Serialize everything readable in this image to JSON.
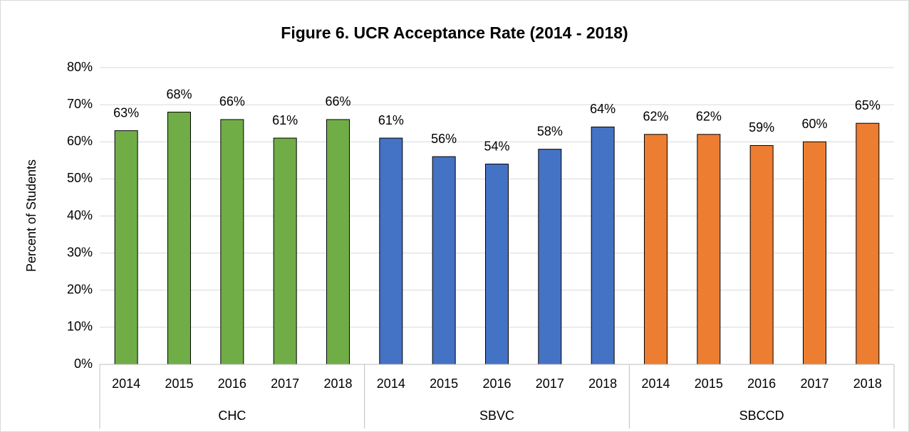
{
  "chart_data": {
    "type": "bar",
    "title": "Figure 6. UCR Acceptance Rate (2014 - 2018)",
    "ylabel": "Percent of Students",
    "groups": [
      {
        "name": "CHC",
        "color": "#70ad47",
        "categories": [
          "2014",
          "2015",
          "2016",
          "2017",
          "2018"
        ],
        "values": [
          63,
          68,
          66,
          61,
          66
        ],
        "value_labels": [
          "63%",
          "68%",
          "66%",
          "61%",
          "66%"
        ]
      },
      {
        "name": "SBVC",
        "color": "#4472c4",
        "categories": [
          "2014",
          "2015",
          "2016",
          "2017",
          "2018"
        ],
        "values": [
          61,
          56,
          54,
          58,
          64
        ],
        "value_labels": [
          "61%",
          "56%",
          "54%",
          "58%",
          "64%"
        ]
      },
      {
        "name": "SBCCD",
        "color": "#ed7d31",
        "categories": [
          "2014",
          "2015",
          "2016",
          "2017",
          "2018"
        ],
        "values": [
          62,
          62,
          59,
          60,
          65
        ],
        "value_labels": [
          "62%",
          "62%",
          "59%",
          "60%",
          "65%"
        ]
      }
    ],
    "ylim": [
      0,
      80
    ],
    "yticks": [
      {
        "value": 0,
        "label": "0%"
      },
      {
        "value": 10,
        "label": "10%"
      },
      {
        "value": 20,
        "label": "20%"
      },
      {
        "value": 30,
        "label": "30%"
      },
      {
        "value": 40,
        "label": "40%"
      },
      {
        "value": 50,
        "label": "50%"
      },
      {
        "value": 60,
        "label": "60%"
      },
      {
        "value": 70,
        "label": "70%"
      },
      {
        "value": 80,
        "label": "80%"
      }
    ],
    "grid": true
  }
}
